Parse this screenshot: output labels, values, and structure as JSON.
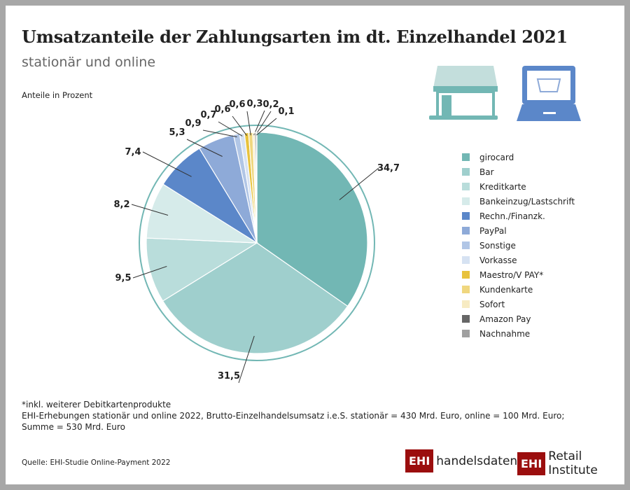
{
  "title": "Umsatzanteile der Zahlungsarten im dt. Einzelhandel 2021",
  "subtitle": "stationär und online",
  "unit_label": "Anteile in Prozent",
  "chart_data": {
    "type": "pie",
    "categories": [
      "girocard",
      "Bar",
      "Kreditkarte",
      "Bankeinzug/Lastschrift",
      "Rechn./Finanzk.",
      "PayPal",
      "Sonstige",
      "Vorkasse",
      "Maestro/V PAY*",
      "Kundenkarte",
      "Sofort",
      "Amazon Pay",
      "Nachnahme"
    ],
    "values": [
      34.7,
      31.5,
      9.5,
      8.2,
      7.4,
      5.3,
      0.9,
      0.7,
      0.6,
      0.6,
      0.3,
      0.2,
      0.1
    ],
    "value_labels": [
      "34,7",
      "31,5",
      "9,5",
      "8,2",
      "7,4",
      "5,3",
      "0,9",
      "0,7",
      "0,6",
      "0,6",
      "0,3",
      "0,2",
      "0,1"
    ],
    "colors": [
      "#72b7b4",
      "#9fcfcd",
      "#b9dddb",
      "#d6ebea",
      "#5b87c9",
      "#8eaad8",
      "#b1c6e6",
      "#d6e2f2",
      "#e8c23c",
      "#f0d77f",
      "#f7ebc2",
      "#666666",
      "#a0a0a0"
    ],
    "legend_position": "right"
  },
  "footnote": "*inkl. weiterer Debitkartenprodukte",
  "note1": "EHI-Erhebungen stationär und online 2022, Brutto-Einzelhandelsumsatz i.e.S. stationär = 430 Mrd. Euro, online = 100 Mrd. Euro;",
  "note2": "Summe = 530 Mrd. Euro",
  "source": "Quelle: EHI-Studie Online-Payment 2022",
  "logo1": {
    "mark": "EHI",
    "text": "handelsdaten.de"
  },
  "logo2": {
    "mark": "EHI",
    "text": "Retail Institute"
  }
}
